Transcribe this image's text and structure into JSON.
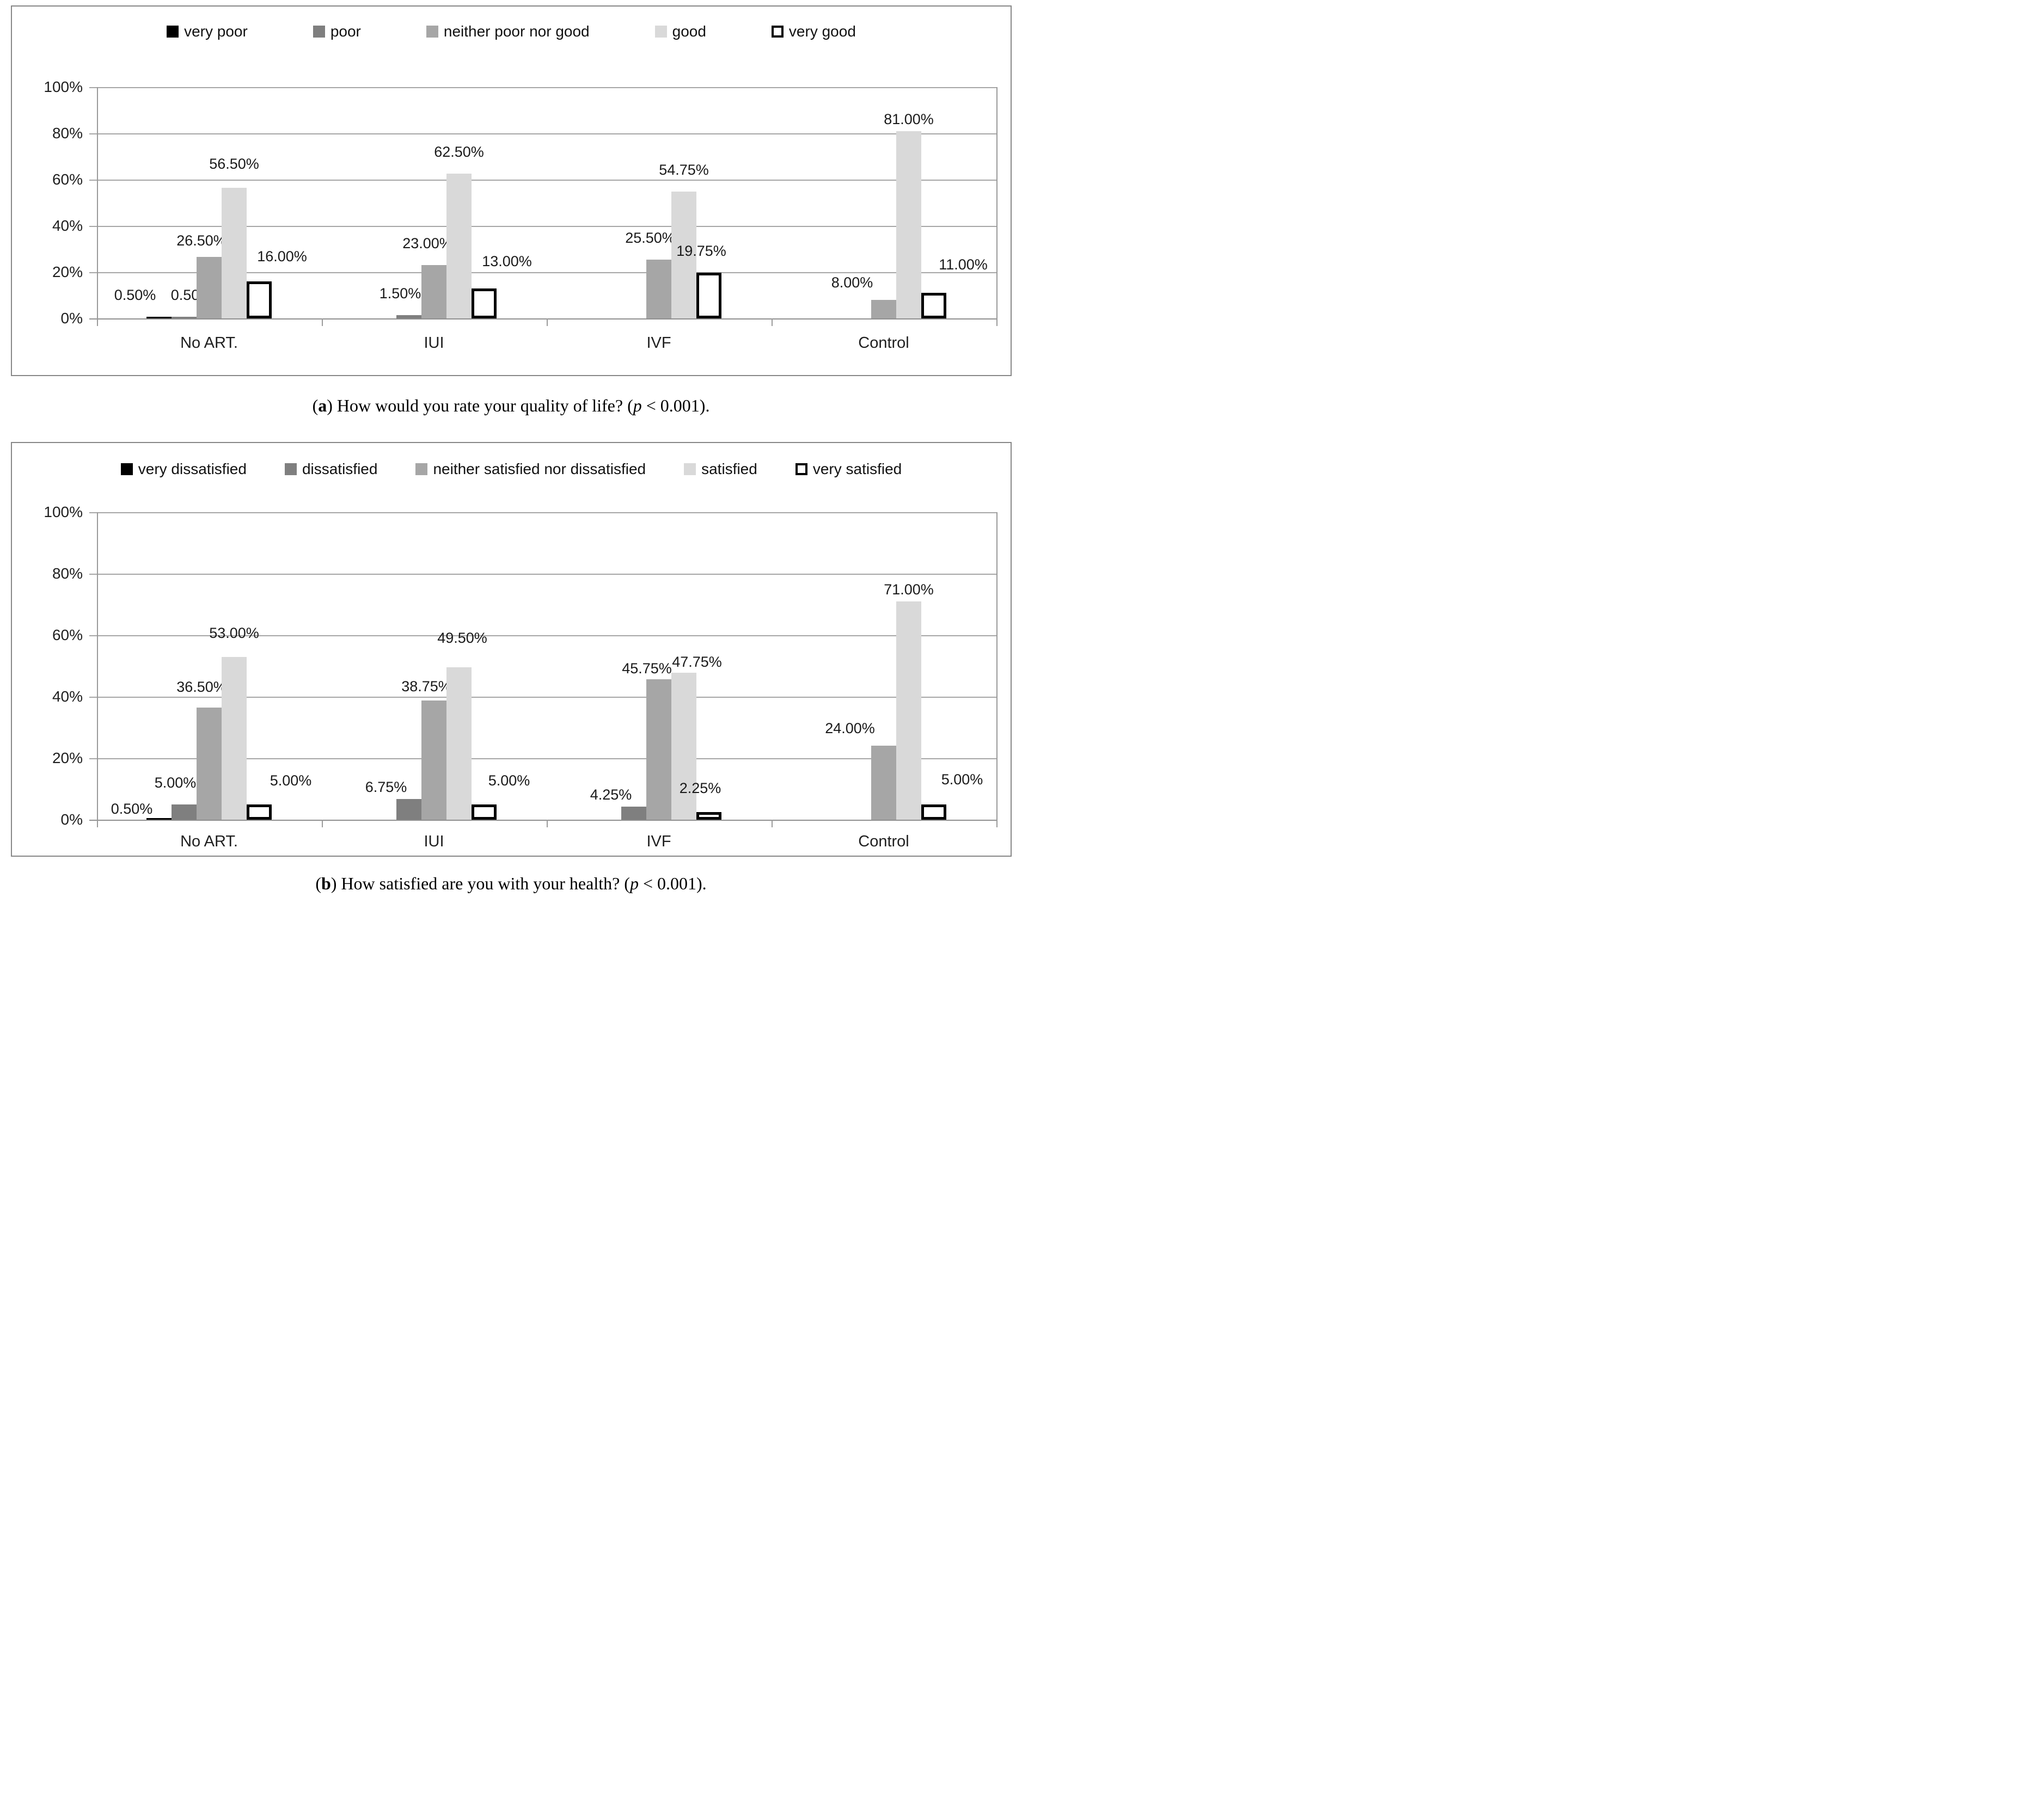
{
  "colors": {
    "series_fills": [
      "#000000",
      "#7f7f7f",
      "#a6a6a6",
      "#d9d9d9",
      "#ffffff"
    ],
    "hollow_border": "#000000",
    "gridline": "#a6a6a6",
    "baseline": "#8f8f8f",
    "axis": "#9a9a9a",
    "panel_border": "#878787",
    "label_text": "#1a1a1a"
  },
  "chart_data": [
    {
      "id": "a",
      "type": "bar",
      "legend": [
        "very poor",
        "poor",
        "neither poor nor good",
        "good",
        "very good"
      ],
      "legend_position": "top",
      "grid": true,
      "categories": [
        "No ART.",
        "IUI",
        "IVF",
        "Control"
      ],
      "series": [
        {
          "name": "very poor",
          "values": [
            0.5,
            0,
            0,
            0
          ],
          "labels": [
            "0.50%",
            null,
            null,
            null
          ]
        },
        {
          "name": "poor",
          "values": [
            0.5,
            1.5,
            0,
            0
          ],
          "labels": [
            "0.50%",
            "1.50%",
            null,
            null
          ]
        },
        {
          "name": "neither poor nor good",
          "values": [
            26.5,
            23,
            25.5,
            8
          ],
          "labels": [
            "26.50%",
            "23.00%",
            "25.50%",
            "8.00%"
          ]
        },
        {
          "name": "good",
          "values": [
            56.5,
            62.5,
            54.75,
            81
          ],
          "labels": [
            "56.50%",
            "62.50%",
            "54.75%",
            "81.00%"
          ]
        },
        {
          "name": "very good",
          "values": [
            16,
            13,
            19.75,
            11
          ],
          "labels": [
            "16.00%",
            "13.00%",
            "19.75%",
            "11.00%"
          ]
        }
      ],
      "y_axis": {
        "ticks": [
          "100%",
          "80%",
          "60%",
          "40%",
          "20%",
          "0%"
        ],
        "range": [
          0,
          100
        ]
      },
      "caption": {
        "prefix": "(",
        "tag": "a",
        "mid": ") ",
        "question": "How would you rate your quality of life?",
        "paren": " (",
        "p_symbol": "p",
        "p_value": " < 0.001",
        "suffix": ")."
      }
    },
    {
      "id": "b",
      "type": "bar",
      "legend": [
        "very dissatisfied",
        "dissatisfied",
        "neither satisfied nor dissatisfied",
        "satisfied",
        "very satisfied"
      ],
      "legend_position": "top",
      "grid": true,
      "categories": [
        "No ART.",
        "IUI",
        "IVF",
        "Control"
      ],
      "series": [
        {
          "name": "very dissatisfied",
          "values": [
            0.5,
            0,
            0,
            0
          ],
          "labels": [
            "0.50%",
            null,
            null,
            null
          ]
        },
        {
          "name": "dissatisfied",
          "values": [
            5,
            6.75,
            4.25,
            0
          ],
          "labels": [
            "5.00%",
            "6.75%",
            "4.25%",
            null
          ]
        },
        {
          "name": "neither satisfied nor dissatisfied",
          "values": [
            36.5,
            38.75,
            45.75,
            24
          ],
          "labels": [
            "36.50%",
            "38.75%",
            "45.75%",
            "24.00%"
          ]
        },
        {
          "name": "satisfied",
          "values": [
            53,
            49.5,
            47.75,
            71
          ],
          "labels": [
            "53.00%",
            "49.50%",
            "47.75%",
            "71.00%"
          ]
        },
        {
          "name": "very satisfied",
          "values": [
            5,
            5,
            2.25,
            5
          ],
          "labels": [
            "5.00%",
            "5.00%",
            "2.25%",
            "5.00%"
          ]
        }
      ],
      "y_axis": {
        "ticks": [
          "100%",
          "80%",
          "60%",
          "40%",
          "20%",
          "0%"
        ],
        "range": [
          0,
          100
        ]
      },
      "caption": {
        "prefix": "(",
        "tag": "b",
        "mid": ") ",
        "question": "How satisfied are you with your health?",
        "paren": " (",
        "p_symbol": "p",
        "p_value": " < 0.001",
        "suffix": ")."
      }
    }
  ]
}
